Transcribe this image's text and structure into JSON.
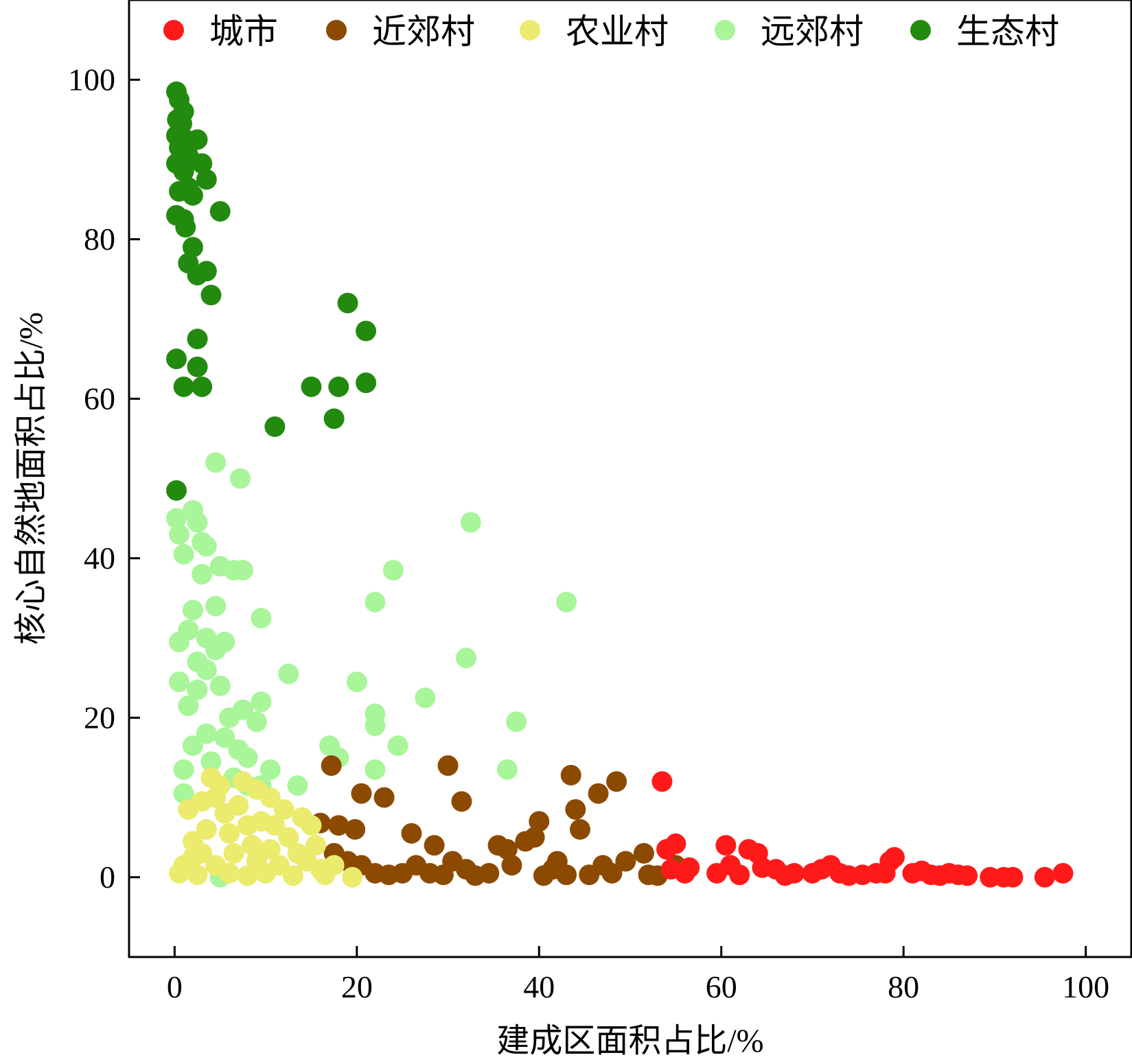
{
  "chart_data": {
    "type": "scatter",
    "xlabel": "建成区面积占比/%",
    "ylabel": "核心自然地面积占比/%",
    "xlim": [
      -5,
      105
    ],
    "ylim": [
      -10,
      110
    ],
    "xticks": [
      0,
      20,
      40,
      60,
      80,
      100
    ],
    "yticks": [
      0,
      20,
      40,
      60,
      80,
      100
    ],
    "grid": false,
    "legend_position": "top",
    "series": [
      {
        "name": "城市",
        "color": "#ff1a1a",
        "points": [
          [
            53.5,
            12.0
          ],
          [
            54.0,
            3.5
          ],
          [
            55.0,
            4.2
          ],
          [
            54.5,
            1.0
          ],
          [
            56.0,
            0.5
          ],
          [
            56.5,
            1.2
          ],
          [
            59.5,
            0.5
          ],
          [
            60.5,
            4.0
          ],
          [
            61.0,
            1.5
          ],
          [
            62.0,
            0.3
          ],
          [
            63.0,
            3.5
          ],
          [
            64.0,
            3.0
          ],
          [
            64.5,
            1.2
          ],
          [
            66.0,
            1.0
          ],
          [
            67.0,
            0.2
          ],
          [
            68.0,
            0.5
          ],
          [
            70.0,
            0.5
          ],
          [
            71.0,
            1.0
          ],
          [
            72.0,
            1.5
          ],
          [
            73.0,
            0.5
          ],
          [
            74.0,
            0.2
          ],
          [
            75.5,
            0.3
          ],
          [
            77.0,
            0.5
          ],
          [
            78.0,
            0.5
          ],
          [
            78.5,
            2.0
          ],
          [
            79.0,
            2.5
          ],
          [
            81.0,
            0.5
          ],
          [
            82.0,
            0.8
          ],
          [
            83.0,
            0.3
          ],
          [
            84.0,
            0.2
          ],
          [
            85.0,
            0.5
          ],
          [
            86.0,
            0.3
          ],
          [
            87.0,
            0.2
          ],
          [
            89.5,
            0.0
          ],
          [
            91.0,
            0.0
          ],
          [
            92.0,
            0.0
          ],
          [
            95.5,
            0.0
          ],
          [
            97.5,
            0.5
          ]
        ]
      },
      {
        "name": "近郊村",
        "color": "#8c4a00",
        "points": [
          [
            17.2,
            14.0
          ],
          [
            20.5,
            10.5
          ],
          [
            23.0,
            10.0
          ],
          [
            16.0,
            6.8
          ],
          [
            18.0,
            6.5
          ],
          [
            19.8,
            6.0
          ],
          [
            26.0,
            5.5
          ],
          [
            28.5,
            4.0
          ],
          [
            30.0,
            14.0
          ],
          [
            31.5,
            9.5
          ],
          [
            17.5,
            3.0
          ],
          [
            19.0,
            2.0
          ],
          [
            20.5,
            1.5
          ],
          [
            22.0,
            0.5
          ],
          [
            23.5,
            0.3
          ],
          [
            25.0,
            0.5
          ],
          [
            26.5,
            1.5
          ],
          [
            28.0,
            0.5
          ],
          [
            29.5,
            0.3
          ],
          [
            30.5,
            2.0
          ],
          [
            32.0,
            1.0
          ],
          [
            33.0,
            0.2
          ],
          [
            34.5,
            0.5
          ],
          [
            35.5,
            4.0
          ],
          [
            36.5,
            3.5
          ],
          [
            37.0,
            1.5
          ],
          [
            38.5,
            4.5
          ],
          [
            39.5,
            5.0
          ],
          [
            40.0,
            7.0
          ],
          [
            40.5,
            0.2
          ],
          [
            41.5,
            1.0
          ],
          [
            42.0,
            2.0
          ],
          [
            43.0,
            0.3
          ],
          [
            43.5,
            12.8
          ],
          [
            44.0,
            8.5
          ],
          [
            44.5,
            6.0
          ],
          [
            45.5,
            0.3
          ],
          [
            46.5,
            10.5
          ],
          [
            47.0,
            1.5
          ],
          [
            48.0,
            0.5
          ],
          [
            48.5,
            12.0
          ],
          [
            49.5,
            2.0
          ],
          [
            51.5,
            3.0
          ],
          [
            52.0,
            0.3
          ],
          [
            53.0,
            0.2
          ],
          [
            55.0,
            1.5
          ]
        ]
      },
      {
        "name": "农业村",
        "color": "#ebeb6e",
        "points": [
          [
            0.5,
            0.5
          ],
          [
            1.0,
            1.5
          ],
          [
            1.5,
            8.5
          ],
          [
            2.0,
            4.5
          ],
          [
            2.5,
            0.3
          ],
          [
            3.0,
            3.0
          ],
          [
            3.5,
            6.0
          ],
          [
            4.0,
            12.5
          ],
          [
            4.5,
            10.0
          ],
          [
            5.0,
            11.5
          ],
          [
            5.5,
            8.0
          ],
          [
            6.0,
            5.5
          ],
          [
            6.5,
            3.0
          ],
          [
            7.0,
            9.0
          ],
          [
            7.5,
            12.0
          ],
          [
            8.0,
            6.5
          ],
          [
            8.5,
            4.0
          ],
          [
            9.0,
            2.0
          ],
          [
            9.5,
            7.0
          ],
          [
            10.0,
            0.5
          ],
          [
            10.5,
            3.5
          ],
          [
            11.0,
            6.5
          ],
          [
            11.5,
            1.5
          ],
          [
            12.0,
            8.5
          ],
          [
            12.5,
            5.0
          ],
          [
            13.0,
            0.2
          ],
          [
            13.5,
            3.0
          ],
          [
            14.0,
            7.5
          ],
          [
            14.5,
            2.0
          ],
          [
            15.0,
            6.5
          ],
          [
            15.5,
            4.0
          ],
          [
            16.0,
            1.0
          ],
          [
            16.5,
            0.3
          ],
          [
            17.5,
            1.5
          ],
          [
            19.5,
            0.0
          ],
          [
            2.0,
            2.5
          ],
          [
            3.0,
            9.5
          ],
          [
            4.5,
            1.5
          ],
          [
            6.0,
            0.5
          ],
          [
            8.0,
            0.2
          ],
          [
            9.0,
            11.0
          ],
          [
            10.5,
            10.0
          ]
        ]
      },
      {
        "name": "远郊村",
        "color": "#a8f59a",
        "points": [
          [
            0.2,
            45.0
          ],
          [
            0.5,
            43.0
          ],
          [
            1.0,
            40.5
          ],
          [
            2.0,
            46.0
          ],
          [
            2.5,
            44.5
          ],
          [
            3.0,
            42.0
          ],
          [
            3.5,
            41.5
          ],
          [
            4.5,
            52.0
          ],
          [
            7.2,
            50.0
          ],
          [
            3.0,
            38.0
          ],
          [
            5.0,
            39.0
          ],
          [
            6.5,
            38.5
          ],
          [
            7.5,
            38.5
          ],
          [
            2.0,
            33.5
          ],
          [
            4.5,
            34.0
          ],
          [
            0.5,
            29.5
          ],
          [
            1.5,
            31.0
          ],
          [
            2.5,
            27.0
          ],
          [
            3.5,
            30.0
          ],
          [
            4.5,
            28.5
          ],
          [
            5.5,
            29.5
          ],
          [
            9.5,
            32.5
          ],
          [
            0.5,
            24.5
          ],
          [
            1.5,
            21.5
          ],
          [
            2.5,
            23.5
          ],
          [
            3.5,
            26.0
          ],
          [
            5.0,
            24.0
          ],
          [
            6.0,
            20.0
          ],
          [
            7.5,
            21.0
          ],
          [
            9.0,
            19.5
          ],
          [
            9.5,
            22.0
          ],
          [
            12.5,
            25.5
          ],
          [
            2.0,
            16.5
          ],
          [
            3.5,
            18.0
          ],
          [
            5.5,
            17.5
          ],
          [
            7.0,
            16.0
          ],
          [
            8.0,
            15.0
          ],
          [
            1.0,
            13.5
          ],
          [
            4.0,
            14.5
          ],
          [
            6.5,
            12.5
          ],
          [
            8.0,
            11.5
          ],
          [
            9.5,
            11.5
          ],
          [
            10.5,
            13.5
          ],
          [
            1.0,
            10.5
          ],
          [
            13.5,
            11.5
          ],
          [
            17.0,
            16.5
          ],
          [
            18.0,
            15.0
          ],
          [
            20.0,
            24.5
          ],
          [
            22.0,
            34.5
          ],
          [
            24.0,
            38.5
          ],
          [
            22.0,
            20.5
          ],
          [
            22.0,
            19.0
          ],
          [
            22.0,
            13.5
          ],
          [
            24.5,
            16.5
          ],
          [
            27.5,
            22.5
          ],
          [
            32.0,
            27.5
          ],
          [
            32.5,
            44.5
          ],
          [
            36.5,
            13.5
          ],
          [
            37.5,
            19.5
          ],
          [
            43.0,
            34.5
          ],
          [
            5.0,
            0.0
          ]
        ]
      },
      {
        "name": "生态村",
        "color": "#238a10",
        "points": [
          [
            0.2,
            98.5
          ],
          [
            0.5,
            97.5
          ],
          [
            1.0,
            96.0
          ],
          [
            0.3,
            95.0
          ],
          [
            0.8,
            94.5
          ],
          [
            0.2,
            93.0
          ],
          [
            1.2,
            92.5
          ],
          [
            0.5,
            91.5
          ],
          [
            1.5,
            90.5
          ],
          [
            2.5,
            92.5
          ],
          [
            0.2,
            89.5
          ],
          [
            1.0,
            88.5
          ],
          [
            3.0,
            89.5
          ],
          [
            3.5,
            87.5
          ],
          [
            0.5,
            86.0
          ],
          [
            1.5,
            86.5
          ],
          [
            2.0,
            85.5
          ],
          [
            0.2,
            83.0
          ],
          [
            1.0,
            82.5
          ],
          [
            1.2,
            81.5
          ],
          [
            5.0,
            83.5
          ],
          [
            2.0,
            79.0
          ],
          [
            1.5,
            77.0
          ],
          [
            2.5,
            75.5
          ],
          [
            3.5,
            76.0
          ],
          [
            4.0,
            73.0
          ],
          [
            2.5,
            67.5
          ],
          [
            0.2,
            65.0
          ],
          [
            2.5,
            64.0
          ],
          [
            1.0,
            61.5
          ],
          [
            3.0,
            61.5
          ],
          [
            0.2,
            48.5
          ],
          [
            11.0,
            56.5
          ],
          [
            15.0,
            61.5
          ],
          [
            17.5,
            57.5
          ],
          [
            18.0,
            61.5
          ],
          [
            19.0,
            72.0
          ],
          [
            21.0,
            68.5
          ],
          [
            21.0,
            62.0
          ]
        ]
      }
    ]
  }
}
